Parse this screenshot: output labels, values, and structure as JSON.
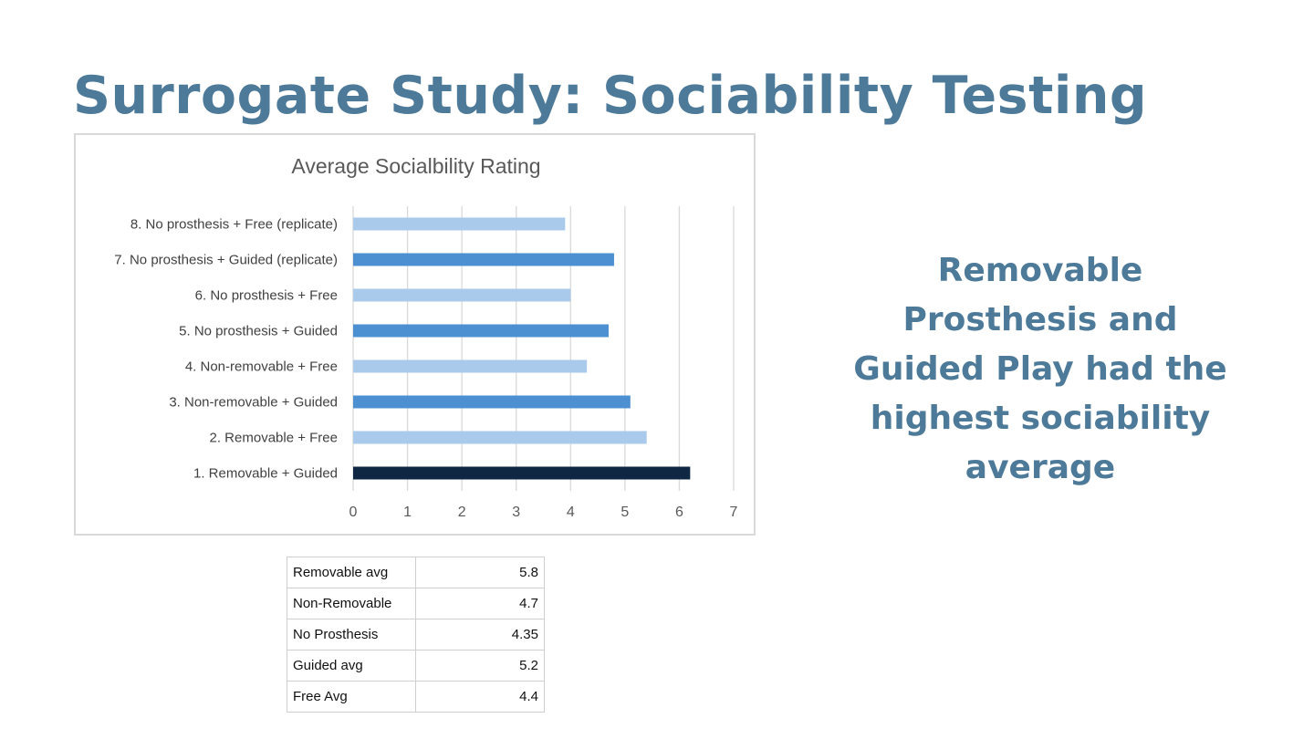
{
  "slide": {
    "title": "Surrogate Study: Sociability Testing",
    "callout": "Removable Prosthesis and Guided Play had the highest sociability average"
  },
  "colors": {
    "title": "#4e7a99",
    "bar_light": "#a9caeb",
    "bar_medium": "#4d90d1",
    "bar_dark": "#0f2743"
  },
  "chart_data": {
    "type": "bar",
    "orientation": "horizontal",
    "title": "Average Socialbility Rating",
    "xlabel": "",
    "ylabel": "",
    "xlim": [
      0,
      7
    ],
    "ticks": [
      "0",
      "1",
      "2",
      "3",
      "4",
      "5",
      "6",
      "7"
    ],
    "grid": true,
    "legend": "none",
    "categories": [
      "1. Removable + Guided",
      "2. Removable + Free",
      "3. Non-removable + Guided",
      "4. Non-removable + Free",
      "5. No prosthesis + Guided",
      "6. No prosthesis + Free",
      "7. No prosthesis + Guided (replicate)",
      "8. No prosthesis + Free (replicate)"
    ],
    "values": [
      6.2,
      5.4,
      5.1,
      4.3,
      4.7,
      4.0,
      4.8,
      3.9
    ],
    "bar_colors": [
      "#0f2743",
      "#a9caeb",
      "#4d90d1",
      "#a9caeb",
      "#4d90d1",
      "#a9caeb",
      "#4d90d1",
      "#a9caeb"
    ]
  },
  "summary_table": {
    "rows": [
      {
        "label": "Removable avg",
        "value": "5.8"
      },
      {
        "label": "Non-Removable",
        "value": "4.7"
      },
      {
        "label": "No Prosthesis",
        "value": "4.35"
      },
      {
        "label": "Guided avg",
        "value": "5.2"
      },
      {
        "label": "Free Avg",
        "value": "4.4"
      }
    ]
  }
}
